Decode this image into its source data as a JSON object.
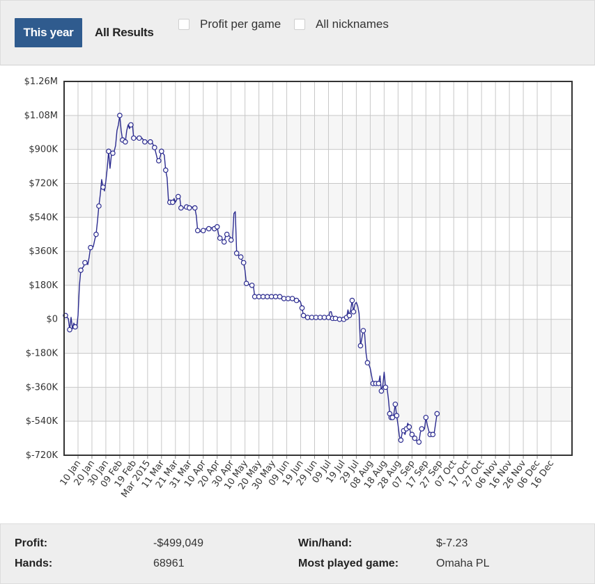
{
  "tabs": {
    "this_year": "This year",
    "all_results": "All Results"
  },
  "options": {
    "profit_per_game": "Profit per game",
    "all_nicknames": "All nicknames"
  },
  "chart_data": {
    "type": "line",
    "series_color": "#2b2b8f",
    "ylim": [
      -720000,
      1260000
    ],
    "yticks": [
      {
        "v": 1260000,
        "label": "$1.26M"
      },
      {
        "v": 1080000,
        "label": "$1.08M"
      },
      {
        "v": 900000,
        "label": "$900K"
      },
      {
        "v": 720000,
        "label": "$720K"
      },
      {
        "v": 540000,
        "label": "$540K"
      },
      {
        "v": 360000,
        "label": "$360K"
      },
      {
        "v": 180000,
        "label": "$180K"
      },
      {
        "v": 0,
        "label": "$0"
      },
      {
        "v": -180000,
        "label": "$-180K"
      },
      {
        "v": -360000,
        "label": "$-360K"
      },
      {
        "v": -540000,
        "label": "$-540K"
      },
      {
        "v": -720000,
        "label": "$-720K"
      }
    ],
    "xlim": [
      0,
      365
    ],
    "xticks": [
      {
        "d": 10,
        "label": "10 Jan"
      },
      {
        "d": 20,
        "label": "20 Jan"
      },
      {
        "d": 30,
        "label": "30 Jan"
      },
      {
        "d": 40,
        "label": "09 Feb"
      },
      {
        "d": 50,
        "label": "19 Feb"
      },
      {
        "d": 60,
        "label": "Mar 2015"
      },
      {
        "d": 70,
        "label": "11 Mar"
      },
      {
        "d": 80,
        "label": "21 Mar"
      },
      {
        "d": 90,
        "label": "31 Mar"
      },
      {
        "d": 100,
        "label": "10 Apr"
      },
      {
        "d": 110,
        "label": "20 Apr"
      },
      {
        "d": 120,
        "label": "30 Apr"
      },
      {
        "d": 130,
        "label": "10 May"
      },
      {
        "d": 140,
        "label": "20 May"
      },
      {
        "d": 150,
        "label": "30 May"
      },
      {
        "d": 160,
        "label": "09 Jun"
      },
      {
        "d": 170,
        "label": "19 Jun"
      },
      {
        "d": 180,
        "label": "29 Jun"
      },
      {
        "d": 190,
        "label": "09 Jul"
      },
      {
        "d": 200,
        "label": "19 Jul"
      },
      {
        "d": 210,
        "label": "29 Jul"
      },
      {
        "d": 220,
        "label": "08 Aug"
      },
      {
        "d": 230,
        "label": "18 Aug"
      },
      {
        "d": 240,
        "label": "28 Aug"
      },
      {
        "d": 250,
        "label": "07 Sep"
      },
      {
        "d": 260,
        "label": "17 Sep"
      },
      {
        "d": 270,
        "label": "27 Sep"
      },
      {
        "d": 280,
        "label": "07 Oct"
      },
      {
        "d": 290,
        "label": "17 Oct"
      },
      {
        "d": 300,
        "label": "27 Oct"
      },
      {
        "d": 310,
        "label": "06 Nov"
      },
      {
        "d": 320,
        "label": "16 Nov"
      },
      {
        "d": 330,
        "label": "26 Nov"
      },
      {
        "d": 340,
        "label": "06 Dec"
      },
      {
        "d": 350,
        "label": "16 Dec"
      }
    ],
    "points": [
      [
        1,
        20000
      ],
      [
        2,
        10000
      ],
      [
        3,
        5000
      ],
      [
        4,
        -55000
      ],
      [
        5,
        10000
      ],
      [
        6,
        -50000
      ],
      [
        7,
        -20000
      ],
      [
        8,
        -40000
      ],
      [
        9,
        -45000
      ],
      [
        10,
        20000
      ],
      [
        11,
        180000
      ],
      [
        12,
        260000
      ],
      [
        13,
        270000
      ],
      [
        14,
        280000
      ],
      [
        15,
        300000
      ],
      [
        16,
        310000
      ],
      [
        17,
        290000
      ],
      [
        18,
        330000
      ],
      [
        19,
        380000
      ],
      [
        20,
        380000
      ],
      [
        21,
        385000
      ],
      [
        22,
        420000
      ],
      [
        23,
        450000
      ],
      [
        24,
        520000
      ],
      [
        25,
        600000
      ],
      [
        26,
        660000
      ],
      [
        27,
        740000
      ],
      [
        28,
        700000
      ],
      [
        29,
        680000
      ],
      [
        30,
        730000
      ],
      [
        31,
        800000
      ],
      [
        32,
        890000
      ],
      [
        33,
        800000
      ],
      [
        34,
        870000
      ],
      [
        35,
        880000
      ],
      [
        36,
        890000
      ],
      [
        37,
        920000
      ],
      [
        38,
        1000000
      ],
      [
        39,
        1030000
      ],
      [
        40,
        1080000
      ],
      [
        41,
        1000000
      ],
      [
        42,
        950000
      ],
      [
        43,
        960000
      ],
      [
        44,
        940000
      ],
      [
        45,
        1000000
      ],
      [
        46,
        1030000
      ],
      [
        47,
        1010000
      ],
      [
        48,
        1030000
      ],
      [
        49,
        1040000
      ],
      [
        50,
        960000
      ],
      [
        52,
        960000
      ],
      [
        54,
        960000
      ],
      [
        56,
        960000
      ],
      [
        58,
        940000
      ],
      [
        60,
        940000
      ],
      [
        62,
        940000
      ],
      [
        63,
        940000
      ],
      [
        65,
        910000
      ],
      [
        66,
        880000
      ],
      [
        67,
        850000
      ],
      [
        68,
        840000
      ],
      [
        69,
        860000
      ],
      [
        70,
        890000
      ],
      [
        71,
        880000
      ],
      [
        72,
        870000
      ],
      [
        73,
        790000
      ],
      [
        74,
        750000
      ],
      [
        75,
        630000
      ],
      [
        76,
        620000
      ],
      [
        77,
        630000
      ],
      [
        78,
        620000
      ],
      [
        79,
        640000
      ],
      [
        80,
        620000
      ],
      [
        82,
        650000
      ],
      [
        83,
        650000
      ],
      [
        84,
        590000
      ],
      [
        86,
        590000
      ],
      [
        88,
        595000
      ],
      [
        90,
        590000
      ],
      [
        92,
        595000
      ],
      [
        94,
        590000
      ],
      [
        95,
        550000
      ],
      [
        96,
        470000
      ],
      [
        98,
        465000
      ],
      [
        100,
        470000
      ],
      [
        102,
        480000
      ],
      [
        104,
        480000
      ],
      [
        106,
        485000
      ],
      [
        108,
        480000
      ],
      [
        110,
        490000
      ],
      [
        111,
        450000
      ],
      [
        112,
        430000
      ],
      [
        113,
        430000
      ],
      [
        115,
        410000
      ],
      [
        116,
        440000
      ],
      [
        117,
        450000
      ],
      [
        119,
        440000
      ],
      [
        120,
        420000
      ],
      [
        121,
        420000
      ],
      [
        122,
        560000
      ],
      [
        123,
        570000
      ],
      [
        124,
        350000
      ],
      [
        125,
        340000
      ],
      [
        127,
        330000
      ],
      [
        128,
        310000
      ],
      [
        129,
        300000
      ],
      [
        130,
        260000
      ],
      [
        131,
        190000
      ],
      [
        133,
        185000
      ],
      [
        135,
        180000
      ],
      [
        136,
        180000
      ],
      [
        137,
        120000
      ],
      [
        140,
        120000
      ],
      [
        143,
        120000
      ],
      [
        146,
        120000
      ],
      [
        149,
        120000
      ],
      [
        152,
        120000
      ],
      [
        155,
        120000
      ],
      [
        158,
        110000
      ],
      [
        161,
        110000
      ],
      [
        164,
        110000
      ],
      [
        166,
        110000
      ],
      [
        167,
        100000
      ],
      [
        168,
        90000
      ],
      [
        169,
        100000
      ],
      [
        170,
        90000
      ],
      [
        171,
        60000
      ],
      [
        172,
        20000
      ],
      [
        173,
        10000
      ],
      [
        175,
        10000
      ],
      [
        178,
        10000
      ],
      [
        181,
        10000
      ],
      [
        184,
        10000
      ],
      [
        187,
        10000
      ],
      [
        190,
        10000
      ],
      [
        191,
        40000
      ],
      [
        192,
        40000
      ],
      [
        193,
        5000
      ],
      [
        195,
        5000
      ],
      [
        198,
        0
      ],
      [
        201,
        0
      ],
      [
        203,
        10000
      ],
      [
        204,
        50000
      ],
      [
        205,
        20000
      ],
      [
        206,
        50000
      ],
      [
        207,
        100000
      ],
      [
        208,
        40000
      ],
      [
        209,
        80000
      ],
      [
        210,
        90000
      ],
      [
        211,
        70000
      ],
      [
        212,
        30000
      ],
      [
        213,
        -140000
      ],
      [
        214,
        -100000
      ],
      [
        215,
        -60000
      ],
      [
        216,
        -80000
      ],
      [
        217,
        -180000
      ],
      [
        218,
        -230000
      ],
      [
        219,
        -240000
      ],
      [
        220,
        -260000
      ],
      [
        221,
        -300000
      ],
      [
        222,
        -340000
      ],
      [
        224,
        -340000
      ],
      [
        226,
        -340000
      ],
      [
        227,
        -300000
      ],
      [
        228,
        -380000
      ],
      [
        229,
        -350000
      ],
      [
        230,
        -280000
      ],
      [
        231,
        -360000
      ],
      [
        232,
        -360000
      ],
      [
        233,
        -420000
      ],
      [
        234,
        -500000
      ],
      [
        235,
        -520000
      ],
      [
        236,
        -520000
      ],
      [
        237,
        -500000
      ],
      [
        238,
        -450000
      ],
      [
        239,
        -510000
      ],
      [
        240,
        -560000
      ],
      [
        241,
        -620000
      ],
      [
        242,
        -640000
      ],
      [
        243,
        -600000
      ],
      [
        244,
        -590000
      ],
      [
        245,
        -610000
      ],
      [
        246,
        -580000
      ],
      [
        247,
        -550000
      ],
      [
        248,
        -570000
      ],
      [
        249,
        -600000
      ],
      [
        250,
        -610000
      ],
      [
        251,
        -610000
      ],
      [
        252,
        -630000
      ],
      [
        253,
        -640000
      ],
      [
        254,
        -650000
      ],
      [
        255,
        -650000
      ],
      [
        256,
        -600000
      ],
      [
        257,
        -580000
      ],
      [
        258,
        -590000
      ],
      [
        259,
        -580000
      ],
      [
        260,
        -520000
      ],
      [
        261,
        -560000
      ],
      [
        262,
        -590000
      ],
      [
        263,
        -610000
      ],
      [
        264,
        -600000
      ],
      [
        265,
        -610000
      ],
      [
        266,
        -600000
      ],
      [
        267,
        -550000
      ],
      [
        268,
        -500000
      ]
    ],
    "markers": [
      [
        1,
        20000
      ],
      [
        4,
        -55000
      ],
      [
        8,
        -40000
      ],
      [
        12,
        260000
      ],
      [
        15,
        300000
      ],
      [
        19,
        380000
      ],
      [
        23,
        450000
      ],
      [
        25,
        600000
      ],
      [
        28,
        700000
      ],
      [
        32,
        890000
      ],
      [
        35,
        880000
      ],
      [
        40,
        1080000
      ],
      [
        42,
        950000
      ],
      [
        44,
        940000
      ],
      [
        48,
        1030000
      ],
      [
        50,
        960000
      ],
      [
        54,
        960000
      ],
      [
        58,
        940000
      ],
      [
        62,
        940000
      ],
      [
        65,
        910000
      ],
      [
        68,
        840000
      ],
      [
        70,
        890000
      ],
      [
        73,
        790000
      ],
      [
        76,
        620000
      ],
      [
        78,
        620000
      ],
      [
        82,
        650000
      ],
      [
        84,
        590000
      ],
      [
        88,
        595000
      ],
      [
        90,
        590000
      ],
      [
        94,
        590000
      ],
      [
        96,
        470000
      ],
      [
        100,
        470000
      ],
      [
        104,
        480000
      ],
      [
        108,
        480000
      ],
      [
        110,
        490000
      ],
      [
        112,
        430000
      ],
      [
        115,
        410000
      ],
      [
        117,
        450000
      ],
      [
        120,
        420000
      ],
      [
        124,
        350000
      ],
      [
        127,
        330000
      ],
      [
        129,
        300000
      ],
      [
        131,
        190000
      ],
      [
        135,
        180000
      ],
      [
        137,
        120000
      ],
      [
        140,
        120000
      ],
      [
        143,
        120000
      ],
      [
        146,
        120000
      ],
      [
        149,
        120000
      ],
      [
        152,
        120000
      ],
      [
        155,
        120000
      ],
      [
        158,
        110000
      ],
      [
        161,
        110000
      ],
      [
        164,
        110000
      ],
      [
        167,
        100000
      ],
      [
        171,
        60000
      ],
      [
        172,
        20000
      ],
      [
        175,
        10000
      ],
      [
        178,
        10000
      ],
      [
        181,
        10000
      ],
      [
        184,
        10000
      ],
      [
        187,
        10000
      ],
      [
        190,
        10000
      ],
      [
        193,
        5000
      ],
      [
        195,
        5000
      ],
      [
        198,
        0
      ],
      [
        201,
        0
      ],
      [
        203,
        10000
      ],
      [
        205,
        20000
      ],
      [
        207,
        100000
      ],
      [
        208,
        40000
      ],
      [
        213,
        -140000
      ],
      [
        215,
        -60000
      ],
      [
        218,
        -230000
      ],
      [
        222,
        -340000
      ],
      [
        224,
        -340000
      ],
      [
        226,
        -340000
      ],
      [
        228,
        -380000
      ],
      [
        231,
        -360000
      ],
      [
        234,
        -500000
      ],
      [
        235,
        -520000
      ],
      [
        236,
        -520000
      ],
      [
        238,
        -450000
      ],
      [
        239,
        -510000
      ],
      [
        242,
        -640000
      ],
      [
        244,
        -590000
      ],
      [
        246,
        -580000
      ],
      [
        248,
        -570000
      ],
      [
        250,
        -610000
      ],
      [
        252,
        -630000
      ],
      [
        255,
        -650000
      ],
      [
        257,
        -580000
      ],
      [
        260,
        -520000
      ],
      [
        263,
        -610000
      ],
      [
        265,
        -610000
      ],
      [
        268,
        -500000
      ]
    ]
  },
  "footer": {
    "profit_label": "Profit:",
    "profit_value": "-$499,049",
    "hands_label": "Hands:",
    "hands_value": "68961",
    "winhand_label": "Win/hand:",
    "winhand_value": "$-7.23",
    "most_played_label": "Most played game:",
    "most_played_value": "Omaha PL"
  }
}
